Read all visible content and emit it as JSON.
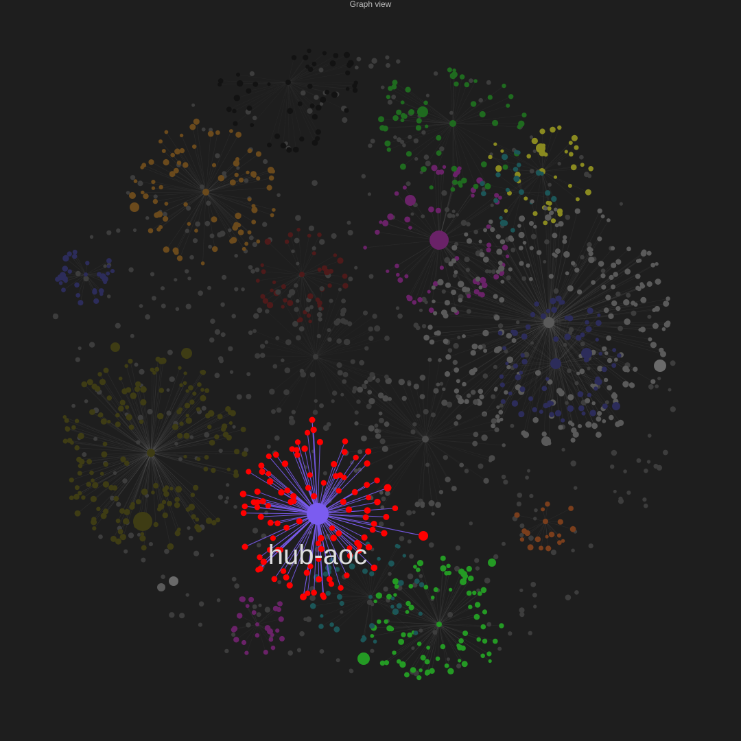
{
  "window": {
    "title": "Graph view"
  },
  "graph": {
    "focused_node": {
      "label": "hub-aoc",
      "color": "#7b5cf0",
      "neighbor_color": "#ff0000",
      "edge_color": "#7b5cf0"
    },
    "background_color": "#1e1e1e",
    "default_node_color": "#3d3d3d",
    "group_colors": {
      "orange": "#6b4a1c",
      "olive": "#3e3c14",
      "indigo": "#2c2c5a",
      "magenta": "#6a2268",
      "green": "#1f6b1f",
      "bright_green": "#249a24",
      "yellow": "#8a8a20",
      "teal": "#1c5658",
      "dark_red": "#4e1a1a",
      "rust": "#7a3e1c",
      "black": "#121212",
      "gray": "#5a5a5a"
    }
  }
}
